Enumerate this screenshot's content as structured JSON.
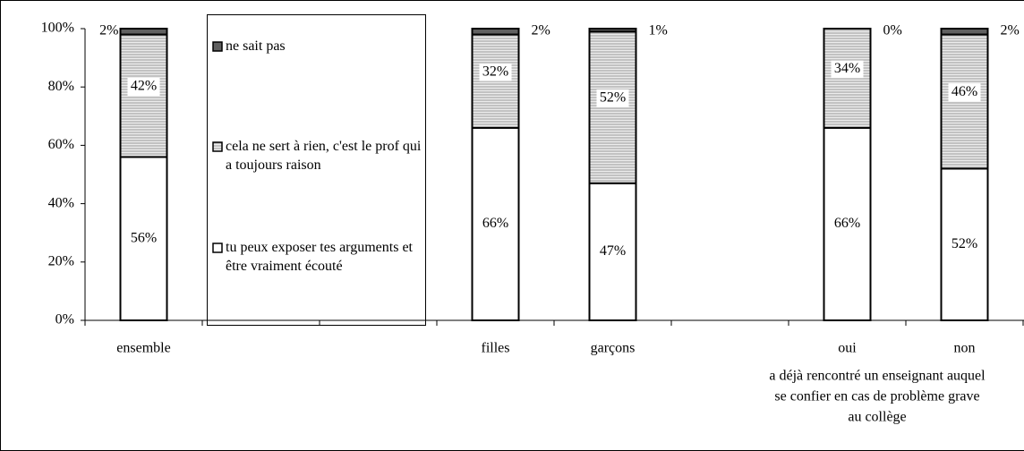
{
  "chart_data": {
    "type": "stacked_bar",
    "categories": [
      "ensemble",
      null,
      null,
      "filles",
      "garçons",
      null,
      "oui",
      "non"
    ],
    "series": [
      {
        "name": "tu peux exposer tes arguments et être vraiment écouté",
        "color": "#ffffff",
        "values": [
          56,
          null,
          null,
          66,
          47,
          null,
          66,
          52
        ],
        "value_labels": [
          "56%",
          null,
          null,
          "66%",
          "47%",
          null,
          "66%",
          "52%"
        ]
      },
      {
        "name": "cela ne sert à rien, c'est le prof qui a toujours raison",
        "color": "#d9d9d9",
        "values": [
          42,
          null,
          null,
          32,
          52,
          null,
          34,
          46
        ],
        "value_labels": [
          "42%",
          null,
          null,
          "32%",
          "52%",
          null,
          "34%",
          "46%"
        ]
      },
      {
        "name": "ne sait pas",
        "color": "#606060",
        "values": [
          2,
          null,
          null,
          2,
          1,
          null,
          0,
          2
        ],
        "value_labels": [
          "2%",
          null,
          null,
          "2%",
          "1%",
          null,
          "0%",
          "2%"
        ]
      }
    ],
    "ylim": [
      0,
      100
    ],
    "yticks": [
      {
        "value": 0,
        "label": "0%"
      },
      {
        "value": 20,
        "label": "20%"
      },
      {
        "value": 40,
        "label": "40%"
      },
      {
        "value": 60,
        "label": "60%"
      },
      {
        "value": 80,
        "label": "80%"
      },
      {
        "value": 100,
        "label": "100%"
      }
    ],
    "annotation": [
      "a déjà rencontré un enseignant auquel",
      "se confier en cas de problème grave",
      "au collège"
    ]
  }
}
